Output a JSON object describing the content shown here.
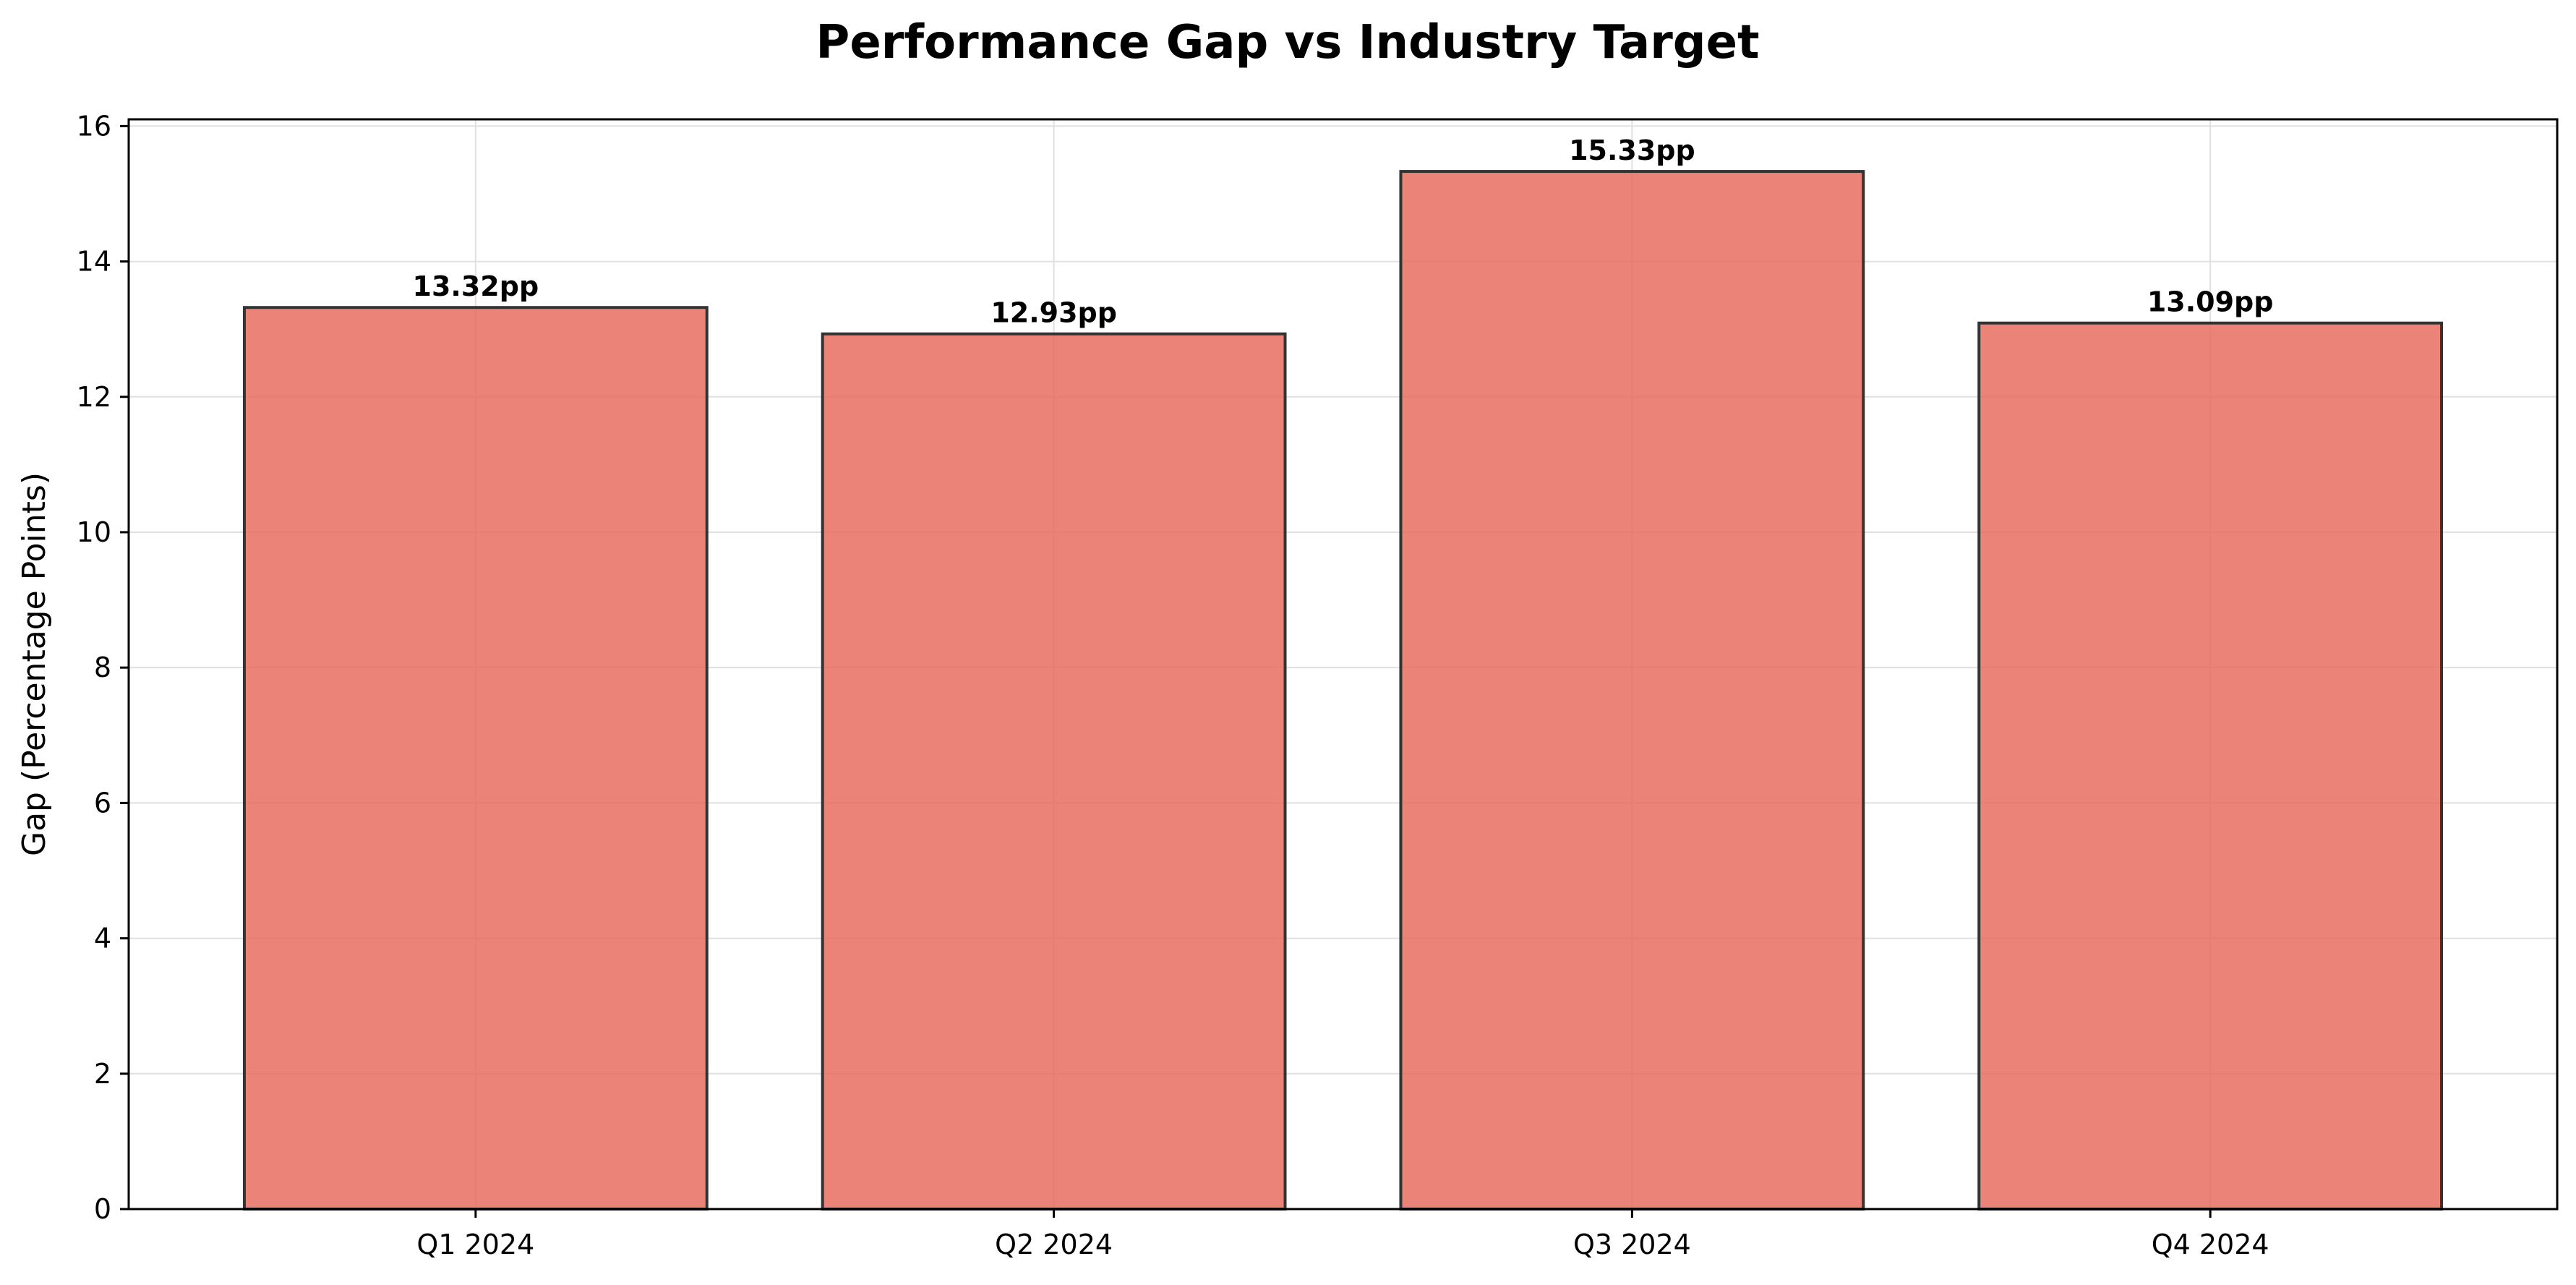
{
  "chart_data": {
    "type": "bar",
    "title": "Performance Gap vs Industry Target",
    "xlabel": "",
    "ylabel": "Gap (Percentage Points)",
    "categories": [
      "Q1 2024",
      "Q2 2024",
      "Q3 2024",
      "Q4 2024"
    ],
    "values": [
      13.32,
      12.93,
      15.33,
      13.09
    ],
    "data_labels": [
      "13.32pp",
      "12.93pp",
      "15.33pp",
      "13.09pp"
    ],
    "ylim": [
      0,
      16.1
    ],
    "yticks": [
      0,
      2,
      4,
      6,
      8,
      10,
      12,
      14,
      16
    ],
    "grid": true,
    "legend": "none",
    "colors": {
      "bar_fill": "#e8685a",
      "bar_edge": "#333333",
      "grid": "#e0e0e0",
      "axis": "#000000"
    }
  }
}
